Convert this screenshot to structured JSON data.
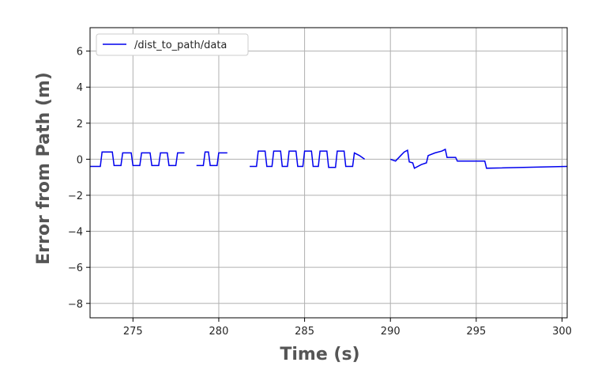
{
  "chart_data": {
    "type": "line",
    "title": "",
    "xlabel": "Time (s)",
    "ylabel": "Error from Path (m)",
    "xlim": [
      272.5,
      300.3
    ],
    "ylim": [
      -8.8,
      7.3
    ],
    "xticks": [
      275,
      280,
      285,
      290,
      295,
      300
    ],
    "yticks": [
      6,
      4,
      2,
      0,
      -2,
      -4,
      -6,
      -8
    ],
    "ytick_labels": [
      "6",
      "4",
      "2",
      "0",
      "−2",
      "−4",
      "−6",
      "−8"
    ],
    "grid": true,
    "legend": "upper-left",
    "series": [
      {
        "name": "/dist_to_path/data",
        "color": "#0000ee",
        "segments": [
          [
            [
              272.5,
              -0.4
            ],
            [
              273.1,
              -0.4
            ],
            [
              273.2,
              0.4
            ],
            [
              273.8,
              0.4
            ],
            [
              273.9,
              -0.35
            ],
            [
              274.3,
              -0.35
            ],
            [
              274.4,
              0.35
            ],
            [
              274.9,
              0.35
            ],
            [
              275.0,
              -0.35
            ],
            [
              275.4,
              -0.35
            ],
            [
              275.5,
              0.35
            ],
            [
              276.0,
              0.35
            ],
            [
              276.1,
              -0.35
            ],
            [
              276.5,
              -0.35
            ],
            [
              276.6,
              0.35
            ],
            [
              277.0,
              0.35
            ],
            [
              277.1,
              -0.35
            ],
            [
              277.5,
              -0.35
            ],
            [
              277.6,
              0.35
            ],
            [
              278.0,
              0.35
            ]
          ],
          [
            [
              278.7,
              -0.35
            ],
            [
              279.1,
              -0.35
            ],
            [
              279.2,
              0.4
            ],
            [
              279.4,
              0.4
            ],
            [
              279.5,
              -0.35
            ],
            [
              279.9,
              -0.35
            ],
            [
              280.0,
              0.35
            ],
            [
              280.5,
              0.35
            ]
          ],
          [
            [
              281.8,
              -0.4
            ],
            [
              282.2,
              -0.4
            ],
            [
              282.3,
              0.45
            ],
            [
              282.7,
              0.45
            ],
            [
              282.8,
              -0.4
            ],
            [
              283.1,
              -0.4
            ],
            [
              283.2,
              0.45
            ],
            [
              283.6,
              0.45
            ],
            [
              283.7,
              -0.4
            ],
            [
              284.0,
              -0.4
            ],
            [
              284.1,
              0.45
            ],
            [
              284.5,
              0.45
            ],
            [
              284.6,
              -0.4
            ],
            [
              284.9,
              -0.4
            ],
            [
              285.0,
              0.45
            ],
            [
              285.4,
              0.45
            ],
            [
              285.5,
              -0.4
            ],
            [
              285.8,
              -0.4
            ],
            [
              285.9,
              0.45
            ],
            [
              286.3,
              0.45
            ],
            [
              286.4,
              -0.45
            ],
            [
              286.8,
              -0.45
            ],
            [
              286.9,
              0.45
            ],
            [
              287.3,
              0.45
            ],
            [
              287.4,
              -0.4
            ],
            [
              287.8,
              -0.4
            ],
            [
              287.9,
              0.35
            ],
            [
              288.2,
              0.2
            ],
            [
              288.5,
              0.0
            ]
          ],
          [
            [
              290.0,
              0.0
            ],
            [
              290.3,
              -0.1
            ],
            [
              290.8,
              0.4
            ],
            [
              291.0,
              0.5
            ],
            [
              291.1,
              -0.15
            ],
            [
              291.3,
              -0.2
            ],
            [
              291.4,
              -0.5
            ],
            [
              291.8,
              -0.3
            ],
            [
              292.1,
              -0.2
            ],
            [
              292.2,
              0.2
            ],
            [
              292.6,
              0.35
            ],
            [
              293.0,
              0.45
            ],
            [
              293.2,
              0.55
            ],
            [
              293.3,
              0.1
            ],
            [
              293.8,
              0.1
            ],
            [
              293.9,
              -0.1
            ],
            [
              295.5,
              -0.1
            ],
            [
              295.6,
              -0.5
            ],
            [
              300.3,
              -0.4
            ]
          ]
        ]
      }
    ]
  }
}
